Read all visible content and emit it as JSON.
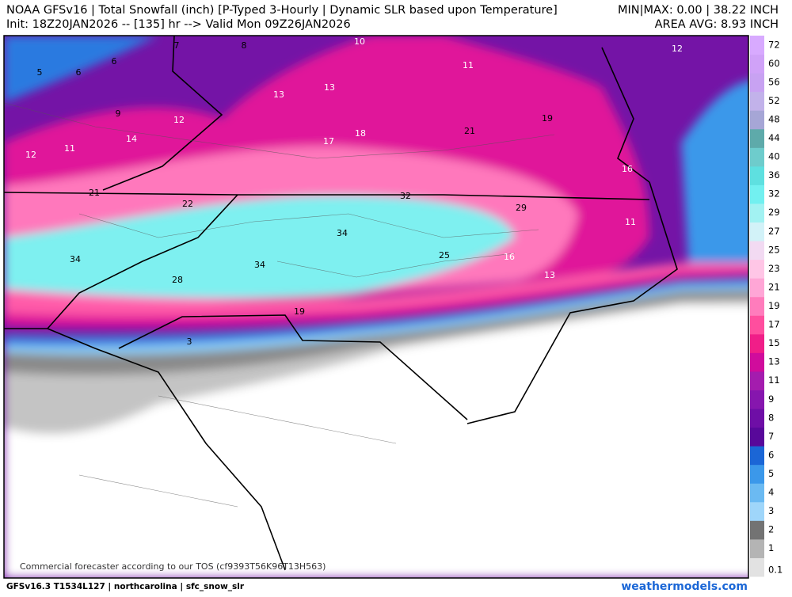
{
  "header": {
    "title": "NOAA GFSv16 | Total Snowfall (inch) [P-Typed 3-Hourly | Dynamic SLR based upon Temperature]",
    "init": "Init: 18Z20JAN2026 -- [135] hr --> Valid Mon 09Z26JAN2026",
    "minmax": "MIN|MAX: 0.00 | 38.22 INCH",
    "area_avg": "AREA AVG: 8.93 INCH"
  },
  "legend": {
    "levels": [
      {
        "label": 0.1,
        "color": "#e2e2e2"
      },
      {
        "label": 1,
        "color": "#b4b4b4"
      },
      {
        "label": 2,
        "color": "#737373"
      },
      {
        "label": 3,
        "color": "#9fd6fa"
      },
      {
        "label": 4,
        "color": "#6bbaf2"
      },
      {
        "label": 5,
        "color": "#3b98ea"
      },
      {
        "label": 6,
        "color": "#1b66d6"
      },
      {
        "label": 7,
        "color": "#58089a"
      },
      {
        "label": 8,
        "color": "#6e0ea6"
      },
      {
        "label": 9,
        "color": "#8616ae"
      },
      {
        "label": 11,
        "color": "#a41cae"
      },
      {
        "label": 13,
        "color": "#d00c9c"
      },
      {
        "label": 15,
        "color": "#f01e88"
      },
      {
        "label": 17,
        "color": "#ff4e9e"
      },
      {
        "label": 19,
        "color": "#ff7cbc"
      },
      {
        "label": 21,
        "color": "#ffa6d6"
      },
      {
        "label": 23,
        "color": "#ffc6e6"
      },
      {
        "label": 25,
        "color": "#f2daf2"
      },
      {
        "label": 27,
        "color": "#d2f2f8"
      },
      {
        "label": 29,
        "color": "#a2f2f2"
      },
      {
        "label": 32,
        "color": "#72f0f0"
      },
      {
        "label": 36,
        "color": "#5ee0e0"
      },
      {
        "label": 40,
        "color": "#6ecccc"
      },
      {
        "label": 44,
        "color": "#5eaaaa"
      },
      {
        "label": 48,
        "color": "#a6a6d6"
      },
      {
        "label": 52,
        "color": "#c2b2ea"
      },
      {
        "label": 56,
        "color": "#c8a2f2"
      },
      {
        "label": 60,
        "color": "#d0a2f8"
      },
      {
        "label": 72,
        "color": "#d8aaff"
      }
    ]
  },
  "map_labels": [
    5,
    6,
    6,
    7,
    8,
    10,
    11,
    12,
    13,
    13,
    9,
    12,
    14,
    19,
    21,
    18,
    17,
    12,
    11,
    16,
    21,
    32,
    22,
    29,
    11,
    34,
    25,
    16,
    34,
    34,
    13,
    28,
    19,
    3
  ],
  "footer": {
    "model": "GFSv16.3 T1534L127 | northcarolina | sfc_snow_slr",
    "watermark": "Commercial forecaster according to our TOS (cf9393T56K96T13H563)",
    "site": "weathermodels.com"
  }
}
